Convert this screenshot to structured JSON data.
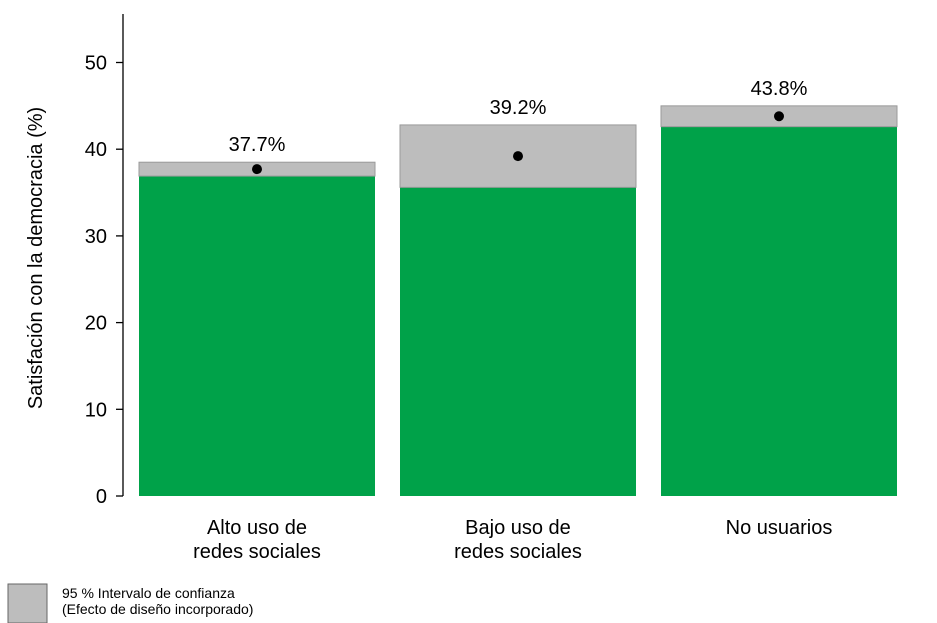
{
  "chart_data": {
    "type": "bar",
    "categories": [
      [
        "Alto uso de",
        "redes sociales"
      ],
      [
        "Bajo uso de",
        "redes sociales"
      ],
      [
        "No usuarios"
      ]
    ],
    "values": [
      37.7,
      39.2,
      43.8
    ],
    "value_labels": [
      "37.7%",
      "39.2%",
      "43.8%"
    ],
    "ci_lower": [
      36.9,
      35.6,
      42.6
    ],
    "ci_upper": [
      38.5,
      42.8,
      45.0
    ],
    "ylabel": "Satisfación con la democracia (%)",
    "xlabel": "",
    "ylim": [
      0,
      55
    ],
    "yticks": [
      0,
      10,
      20,
      30,
      40,
      50
    ],
    "grid": false,
    "legend": {
      "placement": "bottom-left",
      "lines": [
        "95 % Intervalo de confianza",
        "(Efecto de diseño incorporado)"
      ]
    },
    "colors": {
      "bar": "#00A249",
      "ci": "#BDBDBD",
      "point": "#000000",
      "axis": "#000000"
    }
  }
}
